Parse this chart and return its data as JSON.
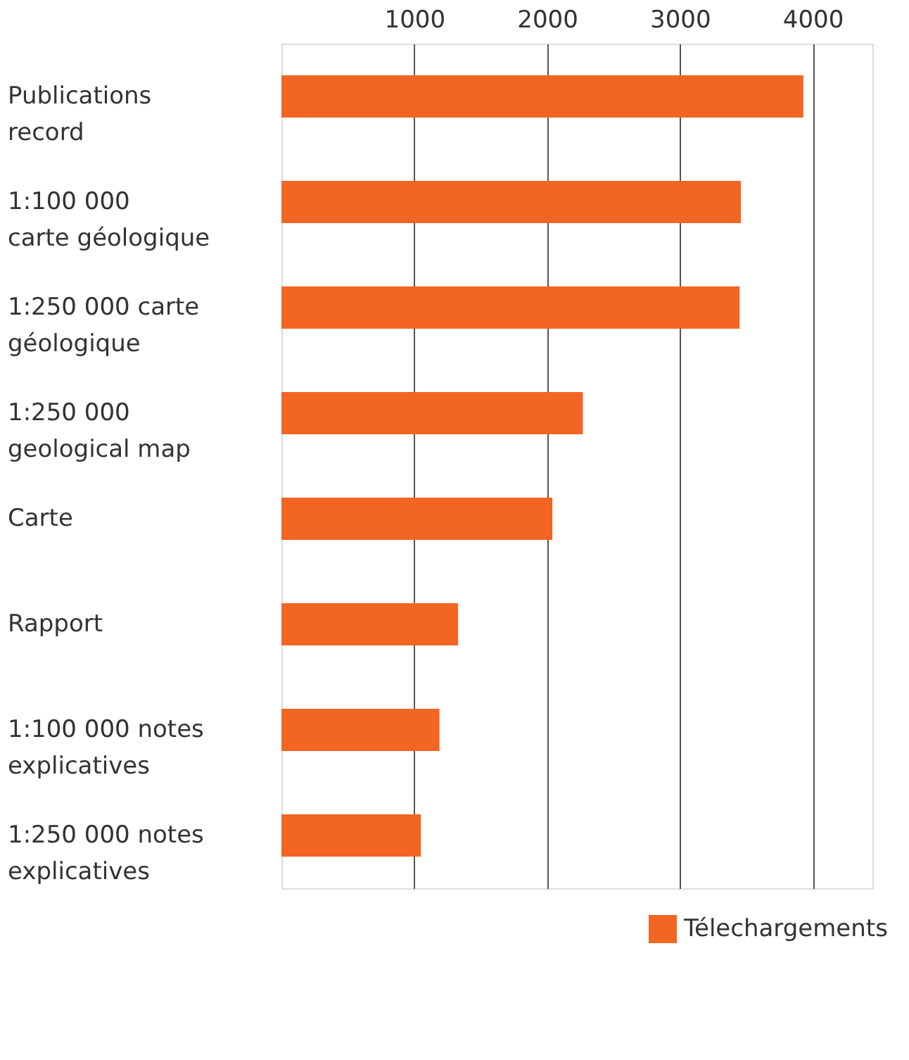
{
  "chart_data": {
    "type": "bar",
    "orientation": "horizontal",
    "categories": [
      "Publications\nrecord",
      "1:100 000\ncarte géologique",
      "1:250 000 carte\ngéologique",
      "1:250 000\ngeological map",
      "Carte",
      "Rapport",
      "1:100 000 notes\nexplicatives",
      "1:250 000 notes\nexplicatives"
    ],
    "series": [
      {
        "name": "Télechargements",
        "color": "#f26522",
        "values": [
          3930,
          3460,
          3450,
          2270,
          2040,
          1330,
          1190,
          1050
        ]
      }
    ],
    "xlim": [
      0,
      4450
    ],
    "xticks": [
      1000,
      2000,
      3000,
      4000
    ],
    "grid": "x",
    "legend": "bottom right"
  }
}
